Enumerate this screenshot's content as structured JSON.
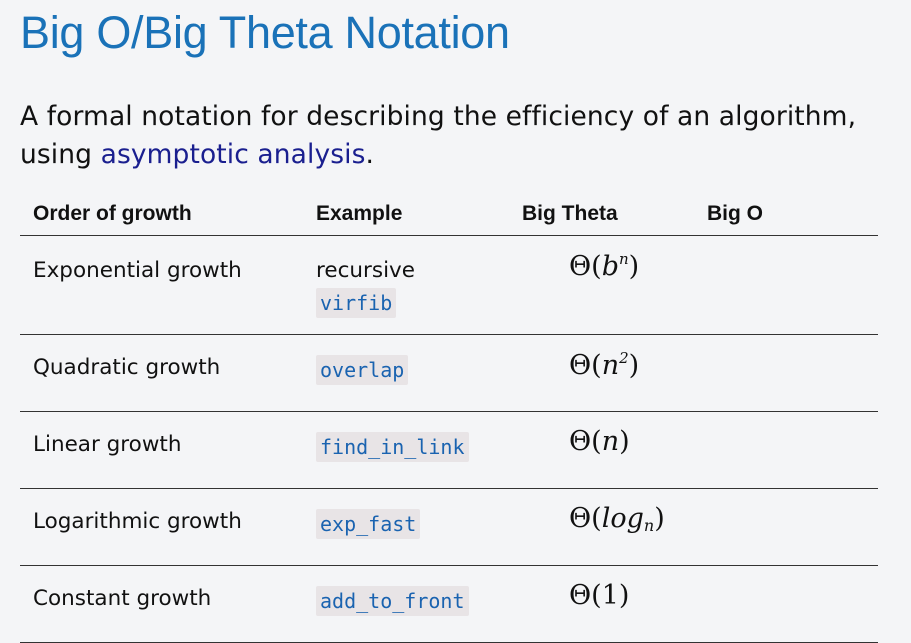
{
  "title": "Big O/Big Theta Notation",
  "intro": {
    "text_before": "A formal notation for describing the efficiency of an algorithm, using ",
    "link": "asymptotic analysis",
    "text_after": "."
  },
  "table": {
    "headers": {
      "order": "Order of growth",
      "example": "Example",
      "big_theta": "Big Theta",
      "big_o": "Big O"
    },
    "rows": [
      {
        "order": "Exponential growth",
        "example_text": "recursive",
        "example_code": "virfib",
        "theta_symbol": "Θ",
        "theta_open": "(",
        "theta_base": "b",
        "theta_sup": "n",
        "theta_sub": "",
        "theta_close": ")",
        "big_o": ""
      },
      {
        "order": "Quadratic growth",
        "example_text": "",
        "example_code": "overlap",
        "theta_symbol": "Θ",
        "theta_open": "(",
        "theta_base": "n",
        "theta_sup": "2",
        "theta_sub": "",
        "theta_close": ")",
        "big_o": ""
      },
      {
        "order": "Linear growth",
        "example_text": "",
        "example_code": "find_in_link",
        "theta_symbol": "Θ",
        "theta_open": "(",
        "theta_base": "n",
        "theta_sup": "",
        "theta_sub": "",
        "theta_close": ")",
        "big_o": ""
      },
      {
        "order": "Logarithmic growth",
        "example_text": "",
        "example_code": "exp_fast",
        "theta_symbol": "Θ",
        "theta_open": "(",
        "theta_base": "log",
        "theta_sup": "",
        "theta_sub": "n",
        "theta_close": ")",
        "big_o": ""
      },
      {
        "order": "Constant growth",
        "example_text": "",
        "example_code": "add_to_front",
        "theta_symbol": "Θ",
        "theta_open": "(",
        "theta_base": "1",
        "theta_sup": "",
        "theta_sub": "",
        "theta_close": ")",
        "big_o": ""
      }
    ]
  },
  "colors": {
    "title": "#1a72b8",
    "link": "#1a1f8f",
    "code_text": "#1a63b0",
    "code_bg": "#e8e4e6",
    "background": "#f4f5f7"
  }
}
